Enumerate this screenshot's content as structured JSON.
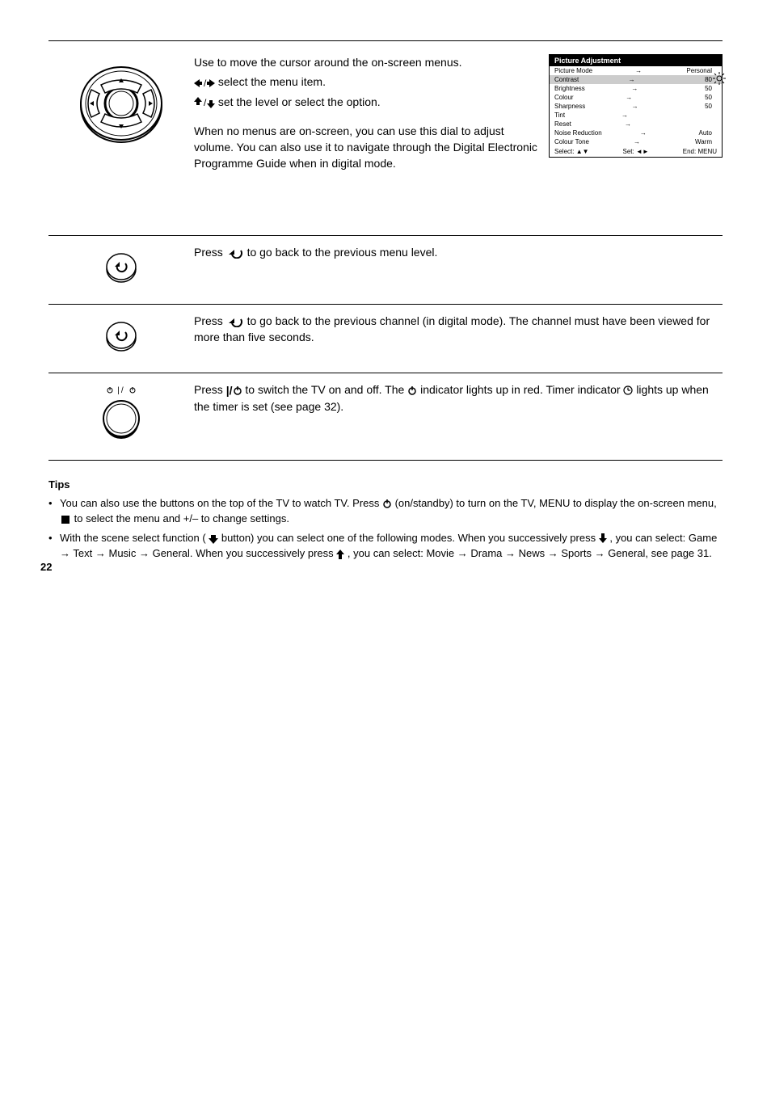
{
  "row_dpad": {
    "p1_a": "Use to move the cursor around the on-screen menus.",
    "p1_b": " select the menu item.",
    "p1_c": " set the level or select the option.",
    "p2": "When no menus are on-screen, you can use this dial to adjust volume. You can also use it to navigate through the Digital Electronic Programme Guide when in digital mode."
  },
  "menu": {
    "title_left": "Picture Adjustment",
    "title_right_icon": "sun-icon",
    "items": [
      {
        "label": "Picture Mode",
        "val": "Personal",
        "sel": false
      },
      {
        "label": "Contrast",
        "val": "80",
        "sel": true
      },
      {
        "label": "Brightness",
        "val": "50",
        "sel": false
      },
      {
        "label": "Colour",
        "val": "50",
        "sel": false
      },
      {
        "label": "Sharpness",
        "val": "50",
        "sel": false
      },
      {
        "label": "Tint",
        "val": "",
        "sel": false
      },
      {
        "label": "Reset",
        "val": "",
        "sel": false
      },
      {
        "label": "Noise Reduction",
        "val": "Auto",
        "sel": false
      },
      {
        "label": "Colour Tone",
        "val": "Warm",
        "sel": false
      }
    ],
    "bottom_left": "Select:",
    "bottom_mid": "Set:",
    "bottom_right_a": "End:",
    "bottom_right_b": "MENU"
  },
  "row_back1": {
    "icon_label": "Press",
    "desc": " to go back to the previous menu level."
  },
  "row_back2": {
    "icon_label": "Press",
    "desc": " to go back to the previous channel (in digital mode). The channel must have been viewed for more than five seconds."
  },
  "row_power": {
    "top_symbol_label": "power-standby",
    "p1_a": "Press ",
    "p1_b": " to switch the TV on and off. The ",
    "p1_c": " indicator lights up in red. Timer indicator ",
    "p1_d": " lights up when the timer is set (see page 32)."
  },
  "tips": {
    "label": "Tips",
    "li1_a": "You can also use the buttons on the top of the TV to watch TV. Press ",
    "li1_b": " (on/standby) to turn on the TV, MENU to display the on-screen menu, ",
    "li1_c": " to select the menu and +/– to change settings.",
    "li2_a": "With the scene select function (",
    "li2_b": " button) you can select one of the following modes. When you successively press ",
    "li2_c": ", you can select: Game ",
    "li2_d": " Text ",
    "li2_e": " Music ",
    "li2_f": " General. When you successively press ",
    "li2_g": ", you can select: Movie ",
    "li2_h": " Drama ",
    "li2_i": " News ",
    "li2_j": " Sports ",
    "li2_k": " General, see page 31."
  },
  "page": "22"
}
